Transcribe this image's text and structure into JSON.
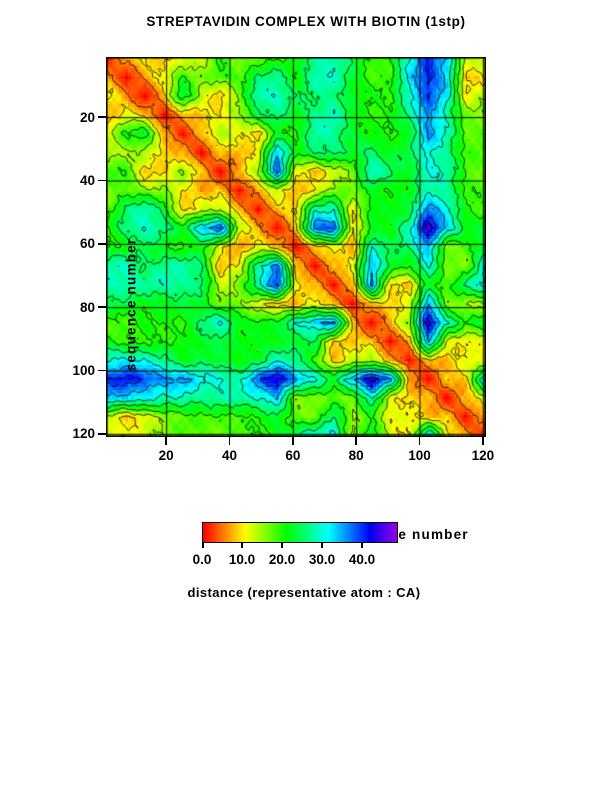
{
  "title": "STREPTAVIDIN COMPLEX WITH BIOTIN (1stp)",
  "axes": {
    "xlabel": "sequence number",
    "ylabel": "sequence number",
    "tick_values": [
      20,
      40,
      60,
      80,
      100,
      120
    ]
  },
  "colorbar": {
    "caption": "distance (representative atom : CA)",
    "tick_labels": [
      "0.0",
      "10.0",
      "20.0",
      "30.0",
      "40.0"
    ],
    "tick_values": [
      0,
      10,
      20,
      30,
      40
    ],
    "value_range": [
      0,
      49
    ]
  },
  "chart_data": {
    "type": "heatmap",
    "title": "STREPTAVIDIN COMPLEX WITH BIOTIN (1stp)",
    "xlabel": "sequence number",
    "ylabel": "sequence number",
    "x_range": [
      1,
      121
    ],
    "y_range": [
      1,
      121
    ],
    "ticks": [
      20,
      40,
      60,
      80,
      100,
      120
    ],
    "grid": true,
    "colormap": "rainbow red(near 0) to violet(~49)",
    "colorbar_label": "distance (representative atom : CA)",
    "colorbar_ticks": [
      0.0,
      10.0,
      20.0,
      30.0,
      40.0
    ],
    "contour_levels": [
      5,
      10,
      15,
      20,
      25,
      30,
      35,
      40,
      44
    ],
    "matrix_units": "Angstrom CA-CA distance",
    "matrix_residues": [
      1,
      7,
      13,
      19,
      25,
      31,
      37,
      43,
      49,
      55,
      61,
      67,
      73,
      79,
      85,
      91,
      97,
      103,
      109,
      115,
      121
    ],
    "matrix": [
      [
        0,
        8,
        11,
        7,
        12,
        13,
        20,
        15,
        18,
        19,
        20,
        28,
        29,
        24,
        18,
        21,
        30,
        40,
        34,
        14,
        12
      ],
      [
        8,
        0,
        6,
        12,
        20,
        15,
        19,
        19,
        25,
        27,
        21,
        29,
        29,
        23,
        19,
        18,
        32,
        42,
        33,
        8,
        10
      ],
      [
        11,
        6,
        0,
        8,
        24,
        14,
        8,
        16,
        29,
        30,
        24,
        25,
        27,
        22,
        20,
        20,
        30,
        39,
        32,
        11,
        14
      ],
      [
        7,
        12,
        8,
        0,
        8,
        8,
        10,
        15,
        24,
        26,
        22,
        27,
        29,
        22,
        20,
        20,
        26,
        37,
        28,
        16,
        16
      ],
      [
        12,
        20,
        24,
        8,
        0,
        8,
        15,
        11,
        8,
        22,
        19,
        28,
        28,
        23,
        20,
        20,
        22,
        36,
        29,
        18,
        18
      ],
      [
        13,
        15,
        14,
        8,
        8,
        0,
        8,
        7,
        12,
        34,
        21,
        26,
        26,
        22,
        26,
        22,
        24,
        31,
        27,
        18,
        18
      ],
      [
        20,
        19,
        8,
        10,
        15,
        8,
        0,
        8,
        14,
        39,
        12,
        7,
        12,
        17,
        30,
        25,
        22,
        31,
        28,
        19,
        17
      ],
      [
        15,
        19,
        16,
        15,
        11,
        7,
        8,
        0,
        8,
        13,
        6,
        11,
        17,
        16,
        22,
        21,
        21,
        28,
        28,
        19,
        18
      ],
      [
        18,
        25,
        29,
        24,
        8,
        12,
        14,
        8,
        0,
        8,
        11,
        28,
        28,
        11,
        22,
        21,
        23,
        38,
        30,
        20,
        19
      ],
      [
        19,
        27,
        30,
        26,
        22,
        34,
        39,
        13,
        8,
        0,
        8,
        38,
        40,
        9,
        21,
        22,
        29,
        45,
        34,
        23,
        22
      ],
      [
        20,
        21,
        24,
        22,
        19,
        21,
        12,
        6,
        11,
        8,
        0,
        8,
        11,
        7,
        30,
        23,
        26,
        36,
        15,
        18,
        25
      ],
      [
        28,
        29,
        25,
        27,
        28,
        26,
        7,
        11,
        28,
        38,
        8,
        0,
        8,
        11,
        34,
        24,
        20,
        30,
        17,
        16,
        30
      ],
      [
        29,
        29,
        27,
        29,
        28,
        26,
        12,
        17,
        28,
        40,
        11,
        8,
        0,
        8,
        37,
        9,
        8,
        23,
        18,
        26,
        32
      ],
      [
        24,
        23,
        22,
        22,
        23,
        22,
        17,
        16,
        11,
        9,
        7,
        11,
        8,
        0,
        8,
        9,
        12,
        35,
        16,
        15,
        14
      ],
      [
        18,
        19,
        20,
        20,
        20,
        26,
        30,
        22,
        22,
        21,
        30,
        34,
        37,
        8,
        0,
        8,
        15,
        45,
        30,
        20,
        23
      ],
      [
        21,
        18,
        20,
        20,
        20,
        22,
        25,
        21,
        21,
        22,
        23,
        24,
        9,
        9,
        8,
        0,
        8,
        36,
        12,
        10,
        13
      ],
      [
        30,
        32,
        30,
        26,
        22,
        24,
        22,
        21,
        23,
        29,
        26,
        20,
        8,
        12,
        15,
        8,
        0,
        8,
        8,
        12,
        9
      ],
      [
        40,
        42,
        39,
        37,
        36,
        31,
        31,
        28,
        38,
        45,
        36,
        30,
        23,
        35,
        45,
        36,
        8,
        0,
        8,
        8,
        34
      ],
      [
        34,
        33,
        32,
        28,
        29,
        27,
        28,
        28,
        30,
        34,
        15,
        17,
        18,
        16,
        30,
        12,
        8,
        8,
        0,
        8,
        11
      ],
      [
        14,
        8,
        11,
        16,
        18,
        18,
        19,
        19,
        20,
        23,
        18,
        16,
        26,
        15,
        20,
        10,
        12,
        8,
        8,
        0,
        8
      ],
      [
        12,
        10,
        14,
        16,
        18,
        18,
        17,
        18,
        19,
        22,
        25,
        30,
        32,
        14,
        23,
        13,
        9,
        34,
        11,
        8,
        0
      ]
    ]
  }
}
